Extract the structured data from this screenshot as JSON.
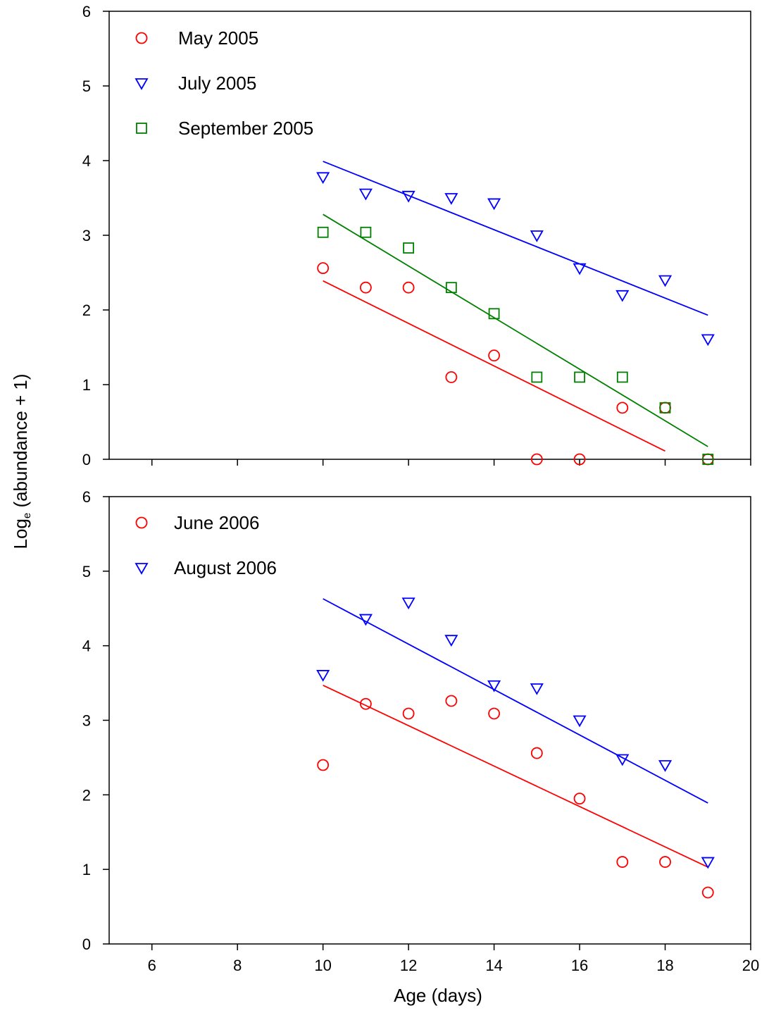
{
  "figure": {
    "ylabel_main": "Log",
    "ylabel_sub": "e",
    "ylabel_rest": " (abundance + 1)",
    "xlabel": "Age (days)"
  },
  "chart_data": [
    {
      "type": "scatter",
      "panel": "top",
      "xlim": [
        5,
        20
      ],
      "ylim": [
        0,
        6
      ],
      "x_ticks": [
        6,
        8,
        10,
        12,
        14,
        16,
        18,
        20
      ],
      "x_tick_labels_shown": false,
      "y_ticks": [
        0,
        1,
        2,
        3,
        4,
        5,
        6
      ],
      "xlabel": "Age (days)",
      "ylabel": "Loge (abundance + 1)",
      "legend_position": "top-left",
      "grid": false,
      "series": [
        {
          "name": "May 2005",
          "marker": "circle",
          "color": "#ff0000",
          "points": [
            [
              10,
              2.56
            ],
            [
              11,
              2.3
            ],
            [
              12,
              2.3
            ],
            [
              13,
              1.1
            ],
            [
              14,
              1.39
            ],
            [
              15,
              0.0
            ],
            [
              16,
              0.0
            ],
            [
              17,
              0.69
            ],
            [
              18,
              0.69
            ],
            [
              19,
              0.0
            ]
          ],
          "fit": [
            [
              10,
              2.39
            ],
            [
              18,
              0.11
            ]
          ]
        },
        {
          "name": "July 2005",
          "marker": "triangle-down",
          "color": "#0000ff",
          "points": [
            [
              10,
              3.78
            ],
            [
              11,
              3.56
            ],
            [
              12,
              3.53
            ],
            [
              13,
              3.5
            ],
            [
              14,
              3.43
            ],
            [
              15,
              3.0
            ],
            [
              16,
              2.56
            ],
            [
              17,
              2.2
            ],
            [
              18,
              2.4
            ],
            [
              19,
              1.61
            ]
          ],
          "fit": [
            [
              10,
              3.99
            ],
            [
              19,
              1.93
            ]
          ]
        },
        {
          "name": "September 2005",
          "marker": "square",
          "color": "#008000",
          "points": [
            [
              10,
              3.04
            ],
            [
              11,
              3.04
            ],
            [
              12,
              2.83
            ],
            [
              13,
              2.3
            ],
            [
              14,
              1.95
            ],
            [
              15,
              1.1
            ],
            [
              16,
              1.1
            ],
            [
              17,
              1.1
            ],
            [
              18,
              0.69
            ],
            [
              19,
              0.0
            ]
          ],
          "fit": [
            [
              10,
              3.28
            ],
            [
              19,
              0.17
            ]
          ]
        }
      ]
    },
    {
      "type": "scatter",
      "panel": "bottom",
      "xlim": [
        5,
        20
      ],
      "ylim": [
        0,
        6
      ],
      "x_ticks": [
        6,
        8,
        10,
        12,
        14,
        16,
        18,
        20
      ],
      "x_tick_labels_shown": true,
      "y_ticks": [
        0,
        1,
        2,
        3,
        4,
        5,
        6
      ],
      "xlabel": "Age (days)",
      "ylabel": "Loge (abundance + 1)",
      "legend_position": "top-left",
      "grid": false,
      "series": [
        {
          "name": "June 2006",
          "marker": "circle",
          "color": "#ff0000",
          "points": [
            [
              10,
              2.4
            ],
            [
              11,
              3.22
            ],
            [
              12,
              3.09
            ],
            [
              13,
              3.26
            ],
            [
              14,
              3.09
            ],
            [
              15,
              2.56
            ],
            [
              16,
              1.95
            ],
            [
              17,
              1.1
            ],
            [
              18,
              1.1
            ],
            [
              19,
              0.69
            ]
          ],
          "fit": [
            [
              10,
              3.47
            ],
            [
              19,
              1.03
            ]
          ]
        },
        {
          "name": "August 2006",
          "marker": "triangle-down",
          "color": "#0000ff",
          "points": [
            [
              10,
              3.61
            ],
            [
              11,
              4.36
            ],
            [
              12,
              4.58
            ],
            [
              13,
              4.08
            ],
            [
              14,
              3.47
            ],
            [
              15,
              3.43
            ],
            [
              16,
              3.0
            ],
            [
              17,
              2.48
            ],
            [
              18,
              2.4
            ],
            [
              19,
              1.1
            ]
          ],
          "fit": [
            [
              10,
              4.63
            ],
            [
              19,
              1.89
            ]
          ]
        }
      ]
    }
  ]
}
